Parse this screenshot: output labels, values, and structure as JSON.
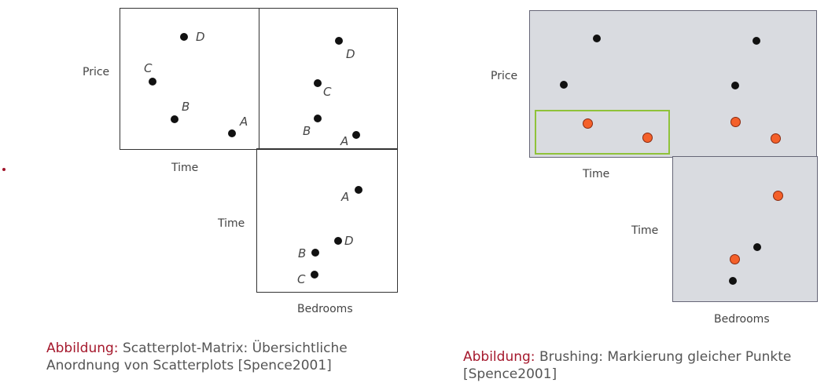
{
  "left": {
    "labels": {
      "price": "Price",
      "time_x": "Time",
      "time_y": "Time",
      "bedrooms": "Bedrooms"
    },
    "points": {
      "a": "A",
      "b": "B",
      "c": "C",
      "d": "D"
    },
    "caption": {
      "prefix": "Abbildung:",
      "line1": "Scatterplot-Matrix: Übersichtliche",
      "line2": "Anordnung von Scatterplots [Spence2001]"
    }
  },
  "right": {
    "labels": {
      "price": "Price",
      "time_x": "Time",
      "time_y": "Time",
      "bedrooms": "Bedrooms"
    },
    "caption": {
      "prefix": "Abbildung:",
      "line1": "Brushing: Markierung gleicher Punkte",
      "line2": "[Spence2001]"
    }
  },
  "colors": {
    "accent": "#a5182c",
    "highlight": "#f4602a",
    "brush": "#8fc23a"
  }
}
